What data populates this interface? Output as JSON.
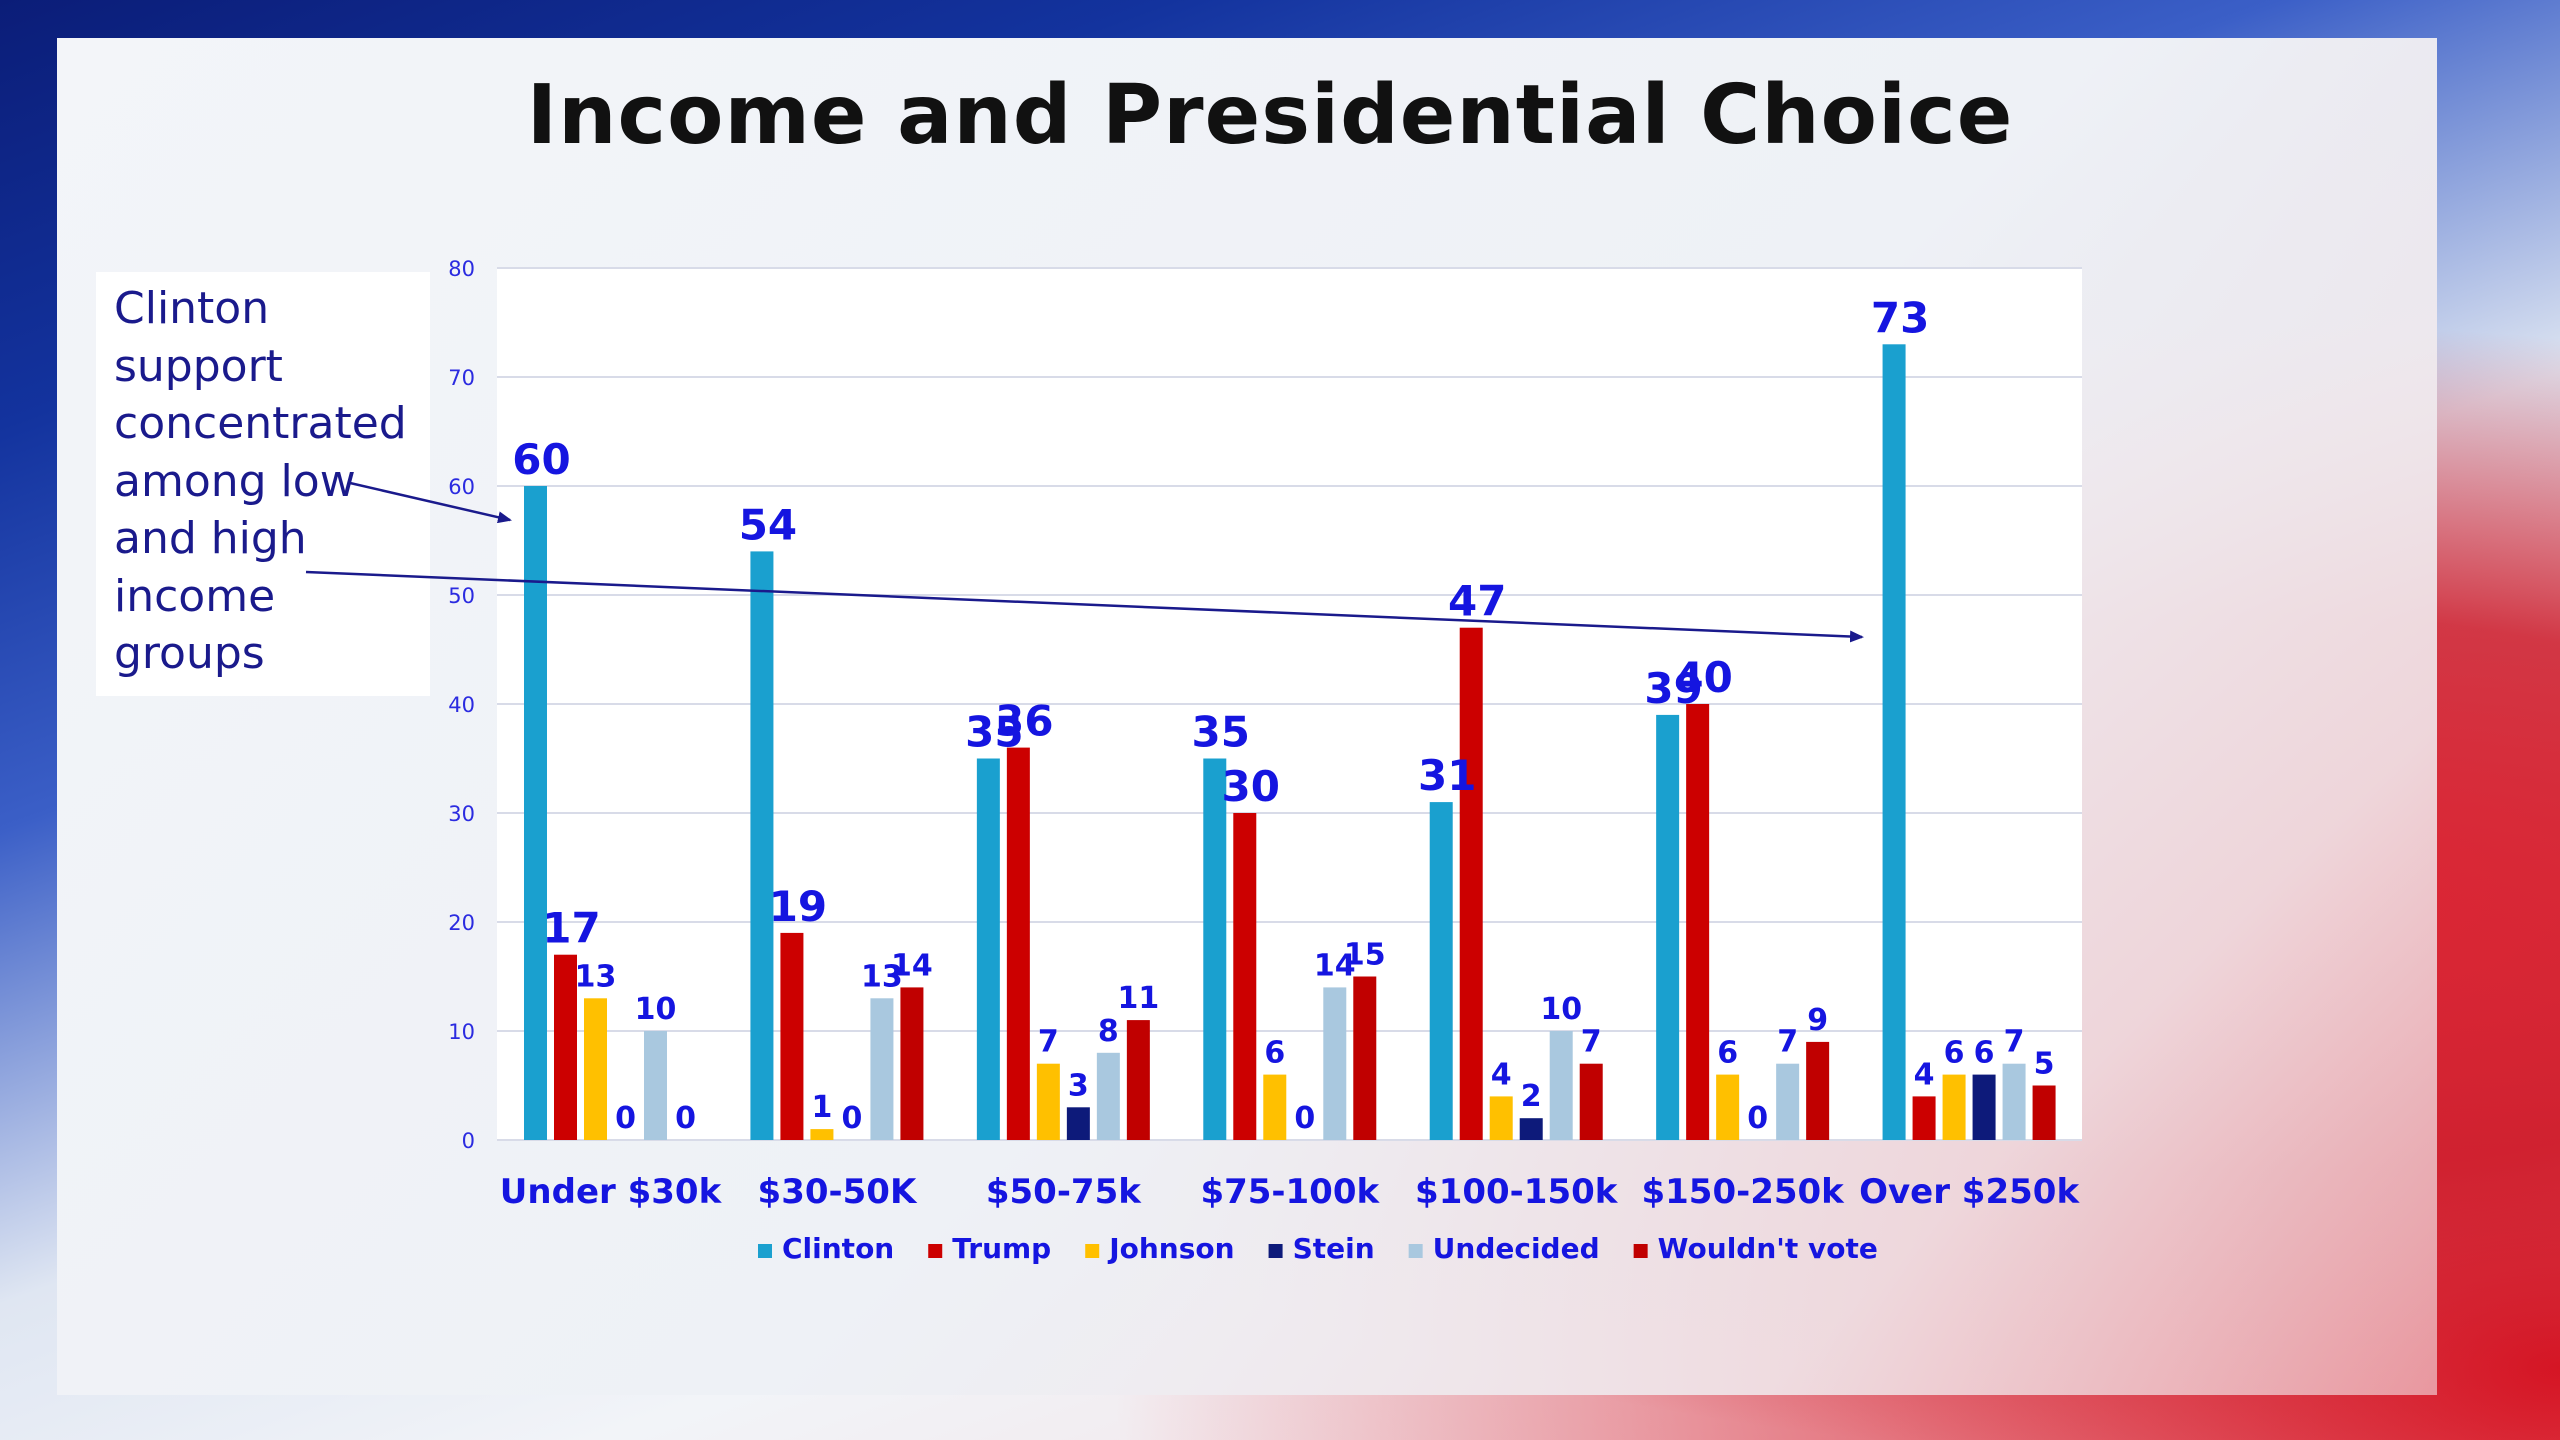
{
  "slide": {
    "title": "Income and Presidential Choice",
    "note": "Clinton support concentrated among low and high income groups"
  },
  "chart_data": {
    "type": "bar",
    "title": "Income and Presidential Choice",
    "xlabel": "",
    "ylabel": "",
    "ylim": [
      0,
      80
    ],
    "yticks": [
      0,
      10,
      20,
      30,
      40,
      50,
      60,
      70,
      80
    ],
    "grid": true,
    "legend": "bottom",
    "categories": [
      "Under $30k",
      "$30-50K",
      "$50-75k",
      "$75-100k",
      "$100-150k",
      "$150-250k",
      "Over $250k"
    ],
    "series": [
      {
        "name": "Clinton",
        "color": "#1aa0cf",
        "values": [
          60,
          54,
          35,
          35,
          31,
          39,
          73
        ]
      },
      {
        "name": "Trump",
        "color": "#cc0000",
        "values": [
          17,
          19,
          36,
          30,
          47,
          40,
          4
        ]
      },
      {
        "name": "Johnson",
        "color": "#ffc000",
        "values": [
          13,
          1,
          7,
          6,
          4,
          6,
          6
        ]
      },
      {
        "name": "Stein",
        "color": "#0d1a7a",
        "values": [
          0,
          0,
          3,
          0,
          2,
          0,
          6
        ]
      },
      {
        "name": "Undecided",
        "color": "#a9c8df",
        "values": [
          10,
          13,
          8,
          14,
          10,
          7,
          7
        ]
      },
      {
        "name": "Wouldn't vote",
        "color": "#c00000",
        "values": [
          0,
          14,
          11,
          15,
          7,
          9,
          5
        ]
      }
    ]
  }
}
